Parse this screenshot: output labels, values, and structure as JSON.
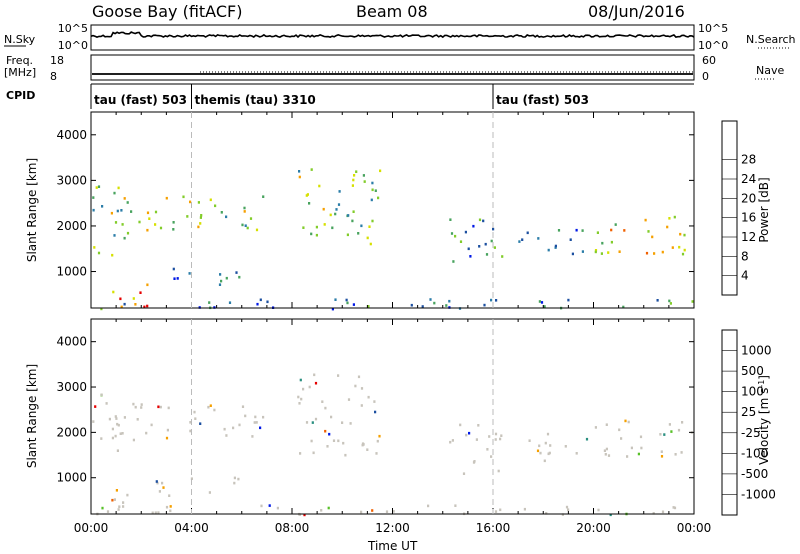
{
  "header": {
    "station": "Goose Bay (fitACF)",
    "beam": "Beam 08",
    "date": "08/Jun/2016"
  },
  "left_labels": {
    "nsky": "N.Sky",
    "nsky_top": "10^5",
    "nsky_bot": "10^0",
    "freq1": "Freq.",
    "freq2": "[MHz]",
    "freq_top": "18",
    "freq_bot": "8",
    "cpid": "CPID"
  },
  "right_labels": {
    "nsearch": "N.Search",
    "nsearch_top": "10^5",
    "nsearch_bot": "10^0",
    "nave": "Nave",
    "nave_top": "60",
    "nave_bot": "0"
  },
  "cpid_labels": [
    {
      "text": "tau (fast) 503",
      "start": 0
    },
    {
      "text": "themis (tau) 3310",
      "start": 4
    },
    {
      "text": "tau (fast) 503",
      "start": 16
    }
  ],
  "colors": {
    "power": [
      "#0018e6",
      "#1c4fa0",
      "#2b7da8",
      "#48a35e",
      "#82cc2a",
      "#d6e000",
      "#f5a000",
      "#f06000",
      "#e60000"
    ],
    "velocity": [
      "#e60000",
      "#f06000",
      "#f5a000",
      "#c8c4bc",
      "#c8c4bc",
      "#58c028",
      "#2a8f80",
      "#1c4fa0",
      "#0018e6"
    ]
  },
  "chart_data": [
    {
      "type": "heatmap",
      "panel": "power",
      "ylabel": "Slant Range [km]",
      "y_ticks": [
        "1000",
        "2000",
        "3000",
        "4000"
      ],
      "ylim": [
        200,
        4500
      ],
      "xlim": [
        0,
        24
      ],
      "colorbar_label": "Power [dB]",
      "colorbar_ticks": [
        "4",
        "8",
        "12",
        "16",
        "20",
        "24",
        "28"
      ],
      "regions": [
        {
          "t0": 0.0,
          "t1": 1.8,
          "r0": 1300,
          "r1": 2900,
          "level": 0.45
        },
        {
          "t0": 1.8,
          "t1": 7.0,
          "r0": 1900,
          "r1": 2700,
          "level": 0.55
        },
        {
          "t0": 2.5,
          "t1": 6.0,
          "r0": 700,
          "r1": 1100,
          "level": 0.2
        },
        {
          "t0": 0.8,
          "t1": 3.2,
          "r0": 250,
          "r1": 800,
          "level": 0.85
        },
        {
          "t0": 8.2,
          "t1": 11.5,
          "r0": 1500,
          "r1": 3300,
          "level": 0.45
        },
        {
          "t0": 14.2,
          "t1": 16.5,
          "r0": 1100,
          "r1": 2200,
          "level": 0.25
        },
        {
          "t0": 17.0,
          "t1": 20.0,
          "r0": 1400,
          "r1": 2000,
          "level": 0.25
        },
        {
          "t0": 20.0,
          "t1": 24.0,
          "r0": 1400,
          "r1": 2300,
          "level": 0.65
        },
        {
          "t0": 0.0,
          "t1": 24.0,
          "r0": 200,
          "r1": 420,
          "level": 0.25
        }
      ]
    },
    {
      "type": "heatmap",
      "panel": "velocity",
      "ylabel": "Slant Range [km]",
      "y_ticks": [
        "1000",
        "2000",
        "3000",
        "4000"
      ],
      "ylim": [
        200,
        4500
      ],
      "xlim": [
        0,
        24
      ],
      "colorbar_label": "Velocity [m s",
      "colorbar_label_sup": "-1",
      "colorbar_label_end": "]",
      "colorbar_ticks": [
        "-1000",
        "-500",
        "-100",
        "-25",
        "25",
        "100",
        "500",
        "1000"
      ],
      "xlabel": "Time UT",
      "x_ticks": [
        "00:00",
        "04:00",
        "08:00",
        "12:00",
        "16:00",
        "20:00",
        "00:00"
      ],
      "regions": [
        {
          "t0": 0.0,
          "t1": 1.8,
          "r0": 1300,
          "r1": 2900,
          "level": 0.5
        },
        {
          "t0": 1.8,
          "t1": 7.0,
          "r0": 1900,
          "r1": 2700,
          "level": 0.5
        },
        {
          "t0": 2.5,
          "t1": 6.0,
          "r0": 700,
          "r1": 1100,
          "level": 0.5
        },
        {
          "t0": 0.8,
          "t1": 3.2,
          "r0": 250,
          "r1": 800,
          "level": 0.6
        },
        {
          "t0": 8.2,
          "t1": 11.5,
          "r0": 1500,
          "r1": 3300,
          "level": 0.5
        },
        {
          "t0": 14.2,
          "t1": 16.5,
          "r0": 1100,
          "r1": 2200,
          "level": 0.5
        },
        {
          "t0": 17.0,
          "t1": 20.0,
          "r0": 1400,
          "r1": 2000,
          "level": 0.5
        },
        {
          "t0": 20.0,
          "t1": 24.0,
          "r0": 1400,
          "r1": 2300,
          "level": 0.5
        },
        {
          "t0": 0.0,
          "t1": 24.0,
          "r0": 200,
          "r1": 420,
          "level": 0.5
        }
      ]
    }
  ]
}
